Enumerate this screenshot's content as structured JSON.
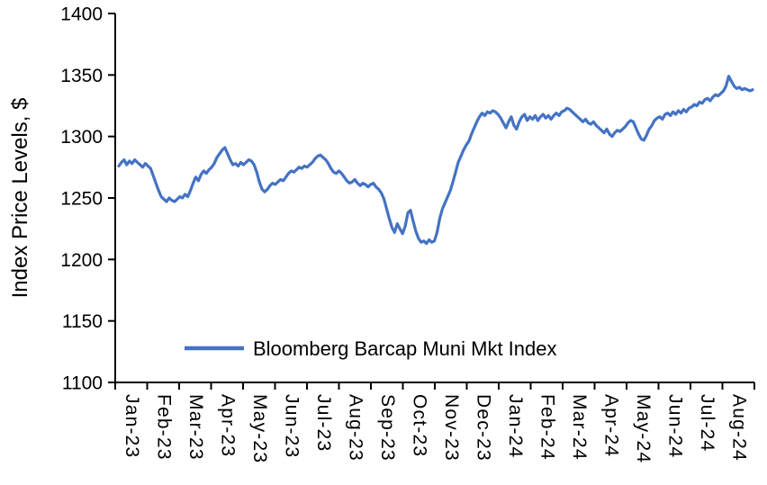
{
  "page": {
    "background": "#ffffff"
  },
  "chart_data": {
    "type": "line",
    "title": "",
    "xlabel": "",
    "ylabel": "Index Price Levels, $",
    "ylim": [
      1100,
      1400
    ],
    "yticks": [
      1100,
      1150,
      1200,
      1250,
      1300,
      1350,
      1400
    ],
    "grid": false,
    "legend_position": "inside-bottom-left",
    "axis_color": "#000000",
    "categories": [
      "Jan-23",
      "Feb-23",
      "Mar-23",
      "Apr-23",
      "May-23",
      "Jun-23",
      "Jul-23",
      "Aug-23",
      "Sep-23",
      "Oct-23",
      "Nov-23",
      "Dec-23",
      "Jan-24",
      "Feb-24",
      "Mar-24",
      "Apr-24",
      "May-24",
      "Jun-24",
      "Jul-24",
      "Aug-24"
    ],
    "points_per_category": 12,
    "series": [
      {
        "name": "Bloomberg Barcap Muni Mkt Index",
        "color": "#4472C4",
        "values": [
          1276,
          1279,
          1281,
          1277,
          1280,
          1278,
          1281,
          1279,
          1277,
          1275,
          1278,
          1276,
          1274,
          1268,
          1262,
          1256,
          1251,
          1249,
          1247,
          1250,
          1248,
          1247,
          1249,
          1251,
          1250,
          1253,
          1251,
          1256,
          1262,
          1267,
          1264,
          1269,
          1272,
          1270,
          1273,
          1275,
          1278,
          1283,
          1286,
          1289,
          1291,
          1286,
          1281,
          1277,
          1278,
          1276,
          1279,
          1277,
          1279,
          1281,
          1280,
          1277,
          1271,
          1263,
          1257,
          1255,
          1257,
          1260,
          1262,
          1261,
          1263,
          1265,
          1264,
          1267,
          1270,
          1272,
          1271,
          1273,
          1275,
          1274,
          1276,
          1275,
          1277,
          1279,
          1282,
          1284,
          1285,
          1283,
          1281,
          1278,
          1274,
          1271,
          1270,
          1272,
          1270,
          1267,
          1264,
          1262,
          1263,
          1265,
          1262,
          1260,
          1262,
          1261,
          1259,
          1261,
          1262,
          1259,
          1257,
          1254,
          1249,
          1241,
          1233,
          1226,
          1222,
          1229,
          1225,
          1221,
          1227,
          1238,
          1240,
          1231,
          1223,
          1217,
          1214,
          1215,
          1213,
          1216,
          1214,
          1215,
          1222,
          1233,
          1241,
          1246,
          1251,
          1256,
          1263,
          1271,
          1279,
          1284,
          1289,
          1293,
          1296,
          1302,
          1307,
          1312,
          1316,
          1319,
          1317,
          1320,
          1319,
          1321,
          1320,
          1318,
          1315,
          1311,
          1307,
          1312,
          1316,
          1309,
          1306,
          1312,
          1316,
          1318,
          1313,
          1316,
          1314,
          1317,
          1313,
          1316,
          1318,
          1315,
          1317,
          1314,
          1317,
          1319,
          1317,
          1320,
          1321,
          1323,
          1322,
          1320,
          1318,
          1316,
          1314,
          1312,
          1314,
          1311,
          1310,
          1312,
          1309,
          1307,
          1305,
          1303,
          1306,
          1302,
          1300,
          1303,
          1305,
          1304,
          1306,
          1308,
          1311,
          1313,
          1312,
          1307,
          1302,
          1298,
          1297,
          1301,
          1306,
          1309,
          1313,
          1315,
          1316,
          1314,
          1318,
          1319,
          1317,
          1320,
          1318,
          1321,
          1319,
          1322,
          1320,
          1323,
          1324,
          1326,
          1325,
          1328,
          1327,
          1330,
          1331,
          1329,
          1332,
          1334,
          1333,
          1335,
          1337,
          1341,
          1349,
          1345,
          1341,
          1339,
          1340,
          1338,
          1339,
          1338,
          1337,
          1338
        ]
      }
    ]
  }
}
